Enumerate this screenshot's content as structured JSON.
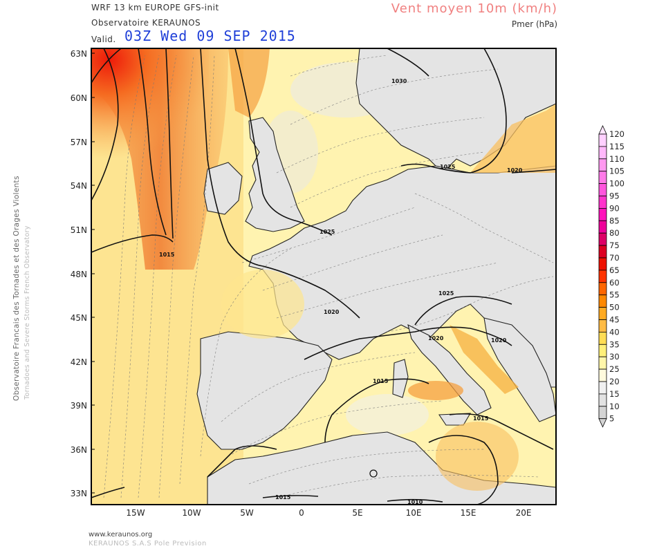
{
  "header": {
    "model": "WRF 13 km EUROPE   GFS-init",
    "observatory": "Observatoire KERAUNOS",
    "valid_label": "Valid.",
    "valid_time": "03Z Wed 09 SEP 2015",
    "parameter": "Vent moyen 10m (km/h)",
    "parameter_sub": "Pmer (hPa)"
  },
  "side_credit": {
    "line1": "Observatoire Francais des Tornades et des Orages Violents",
    "line2": "Tornadoes and Severe Storms French Observatory"
  },
  "footer": {
    "url": "www.keraunos.org",
    "company": "KERAUNOS S.A.S Pole Prevision"
  },
  "map": {
    "lat_labels": [
      "63N",
      "60N",
      "57N",
      "54N",
      "51N",
      "48N",
      "45N",
      "42N",
      "39N",
      "36N",
      "33N"
    ],
    "lon_labels": [
      "15W",
      "10W",
      "5W",
      "0",
      "5E",
      "10E",
      "15E",
      "20E"
    ],
    "isobar_labels": [
      "1030",
      "1025",
      "1020",
      "1025",
      "1015",
      "1020",
      "1025",
      "1020",
      "1020",
      "1015",
      "1015",
      "1015",
      "1010"
    ]
  },
  "colorbar": {
    "levels": [
      "120",
      "115",
      "110",
      "105",
      "100",
      "95",
      "90",
      "85",
      "80",
      "75",
      "70",
      "65",
      "60",
      "55",
      "50",
      "45",
      "40",
      "35",
      "30",
      "25",
      "20",
      "15",
      "10",
      "5"
    ],
    "colors": [
      "#ffe6ff",
      "#ffd0ff",
      "#ffb8fa",
      "#ff99f0",
      "#ff7ae8",
      "#ff55dd",
      "#ff33cc",
      "#ff11bb",
      "#ee0099",
      "#dd0066",
      "#dd0022",
      "#ee1100",
      "#ff3300",
      "#ff6600",
      "#ff8800",
      "#ffaa22",
      "#ffbb44",
      "#ffdd55",
      "#fff07a",
      "#fff6aa",
      "#fffadd",
      "#f0f0f0",
      "#e2e2e2",
      "#d4d4d4"
    ]
  },
  "colors": {
    "valid_time": "#1f3fd8",
    "parameter_title": "#f08080",
    "sea_base": "#fff3b0",
    "land_calm": "#e4e4e4",
    "strong_wind": "#f07030"
  }
}
